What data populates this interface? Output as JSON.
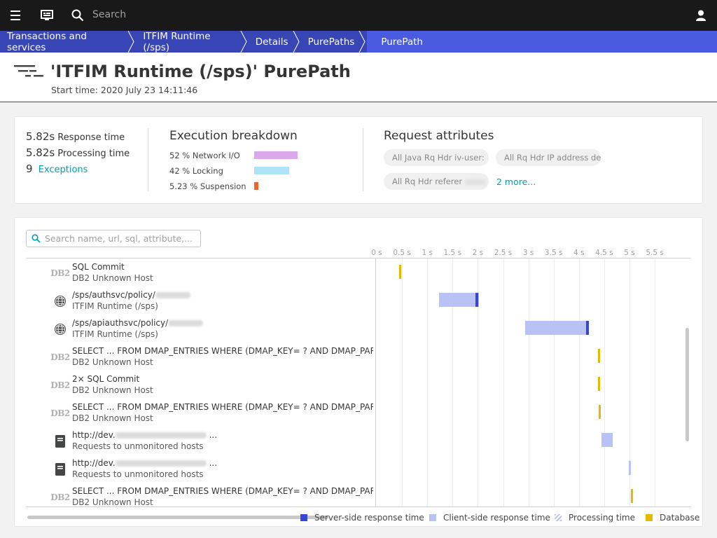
{
  "topbar": {
    "search_placeholder": "Search"
  },
  "breadcrumb": [
    "Transactions and services",
    "ITFIM Runtime (/sps)",
    "Details",
    "PurePaths",
    "PurePath"
  ],
  "header": {
    "title": "'ITFIM Runtime (/sps)' PurePath",
    "start_time": "Start time: 2020 July 23 14:11:46"
  },
  "summary": {
    "response_time_value": "5.82s",
    "response_time_label": "Response time",
    "processing_time_value": "5.82s",
    "processing_time_label": "Processing time",
    "exceptions_count": "9",
    "exceptions_label": "Exceptions",
    "execution_title": "Execution breakdown",
    "breakdown": [
      {
        "label": "52 % Network I/O",
        "percent": 52,
        "color": "#dba8ec"
      },
      {
        "label": "42 % Locking",
        "percent": 42,
        "color": "#aee3f5"
      },
      {
        "label": "5.23 % Suspension",
        "percent": 5.23,
        "color": "#ef6530"
      }
    ],
    "request_title": "Request attributes",
    "attributes": [
      "All Java Rq Hdr iv-user:",
      "All Rq Hdr IP address de",
      "All Rq Hdr referer"
    ],
    "more_label": "2 more..."
  },
  "tree": {
    "search_placeholder": "Search name, url, sql, attribute,...",
    "axis_ticks": [
      "0 s",
      "0.5 s",
      "1 s",
      "1.5 s",
      "2 s",
      "2.5 s",
      "3 s",
      "3.5 s",
      "4 s",
      "4.5 s",
      "5 s",
      "5.5 s"
    ],
    "rows": [
      {
        "icon": "db2-icon",
        "icon_text": "DB2",
        "name": "SQL Commit",
        "sub": "DB2 Unknown Host",
        "type": "db",
        "start_s": 0.45,
        "end_s": 0.45
      },
      {
        "icon": "globe-icon",
        "name": "/sps/authsvc/policy/",
        "sub": "ITFIM Runtime (/sps)",
        "type": "client",
        "start_s": 1.23,
        "end_s": 2.02,
        "server_s": 1.95
      },
      {
        "icon": "globe-icon",
        "name": "/sps/apiauthsvc/policy/",
        "sub": "ITFIM Runtime (/sps)",
        "type": "client",
        "start_s": 2.93,
        "end_s": 4.16,
        "server_s": 4.14
      },
      {
        "icon": "db2-icon",
        "icon_text": "DB2",
        "name": "SELECT ... FROM DMAP_ENTRIES WHERE (DMAP_KEY= ? AND DMAP_PARTITION",
        "sub": "DB2 Unknown Host",
        "type": "db",
        "start_s": 4.38,
        "end_s": 4.38
      },
      {
        "icon": "db2-icon",
        "icon_text": "DB2",
        "name": "2× SQL Commit",
        "sub": "DB2 Unknown Host",
        "type": "db",
        "start_s": 4.38,
        "end_s": 4.38
      },
      {
        "icon": "db2-icon",
        "icon_text": "DB2",
        "name": "SELECT ... FROM DMAP_ENTRIES WHERE (DMAP_KEY= ? AND DMAP_PARTITION",
        "sub": "DB2 Unknown Host",
        "type": "db",
        "start_s": 4.39,
        "end_s": 4.39
      },
      {
        "icon": "server-icon",
        "name": "http://dev.",
        "name_suffix": " ...",
        "sub": "Requests to unmonitored hosts",
        "type": "client",
        "start_s": 4.45,
        "end_s": 4.67
      },
      {
        "icon": "server-icon",
        "name": "http://dev.",
        "name_suffix": " ...",
        "sub": "Requests to unmonitored hosts",
        "type": "client",
        "start_s": 4.99,
        "end_s": 5.03
      },
      {
        "icon": "db2-icon",
        "icon_text": "DB2",
        "name": "SELECT ... FROM DMAP_ENTRIES WHERE (DMAP_KEY= ? AND DMAP_PARTITION",
        "sub": "DB2 Unknown Host",
        "type": "db",
        "start_s": 5.03,
        "end_s": 5.03
      }
    ]
  },
  "legend": [
    {
      "label": "Server-side response time",
      "color": "#3845d9"
    },
    {
      "label": "Client-side response time",
      "color": "#b9c2f4"
    },
    {
      "label": "Processing time",
      "color": "#b9c2f4",
      "pattern": "hatched"
    },
    {
      "label": "Database",
      "color": "#e6b800"
    }
  ]
}
